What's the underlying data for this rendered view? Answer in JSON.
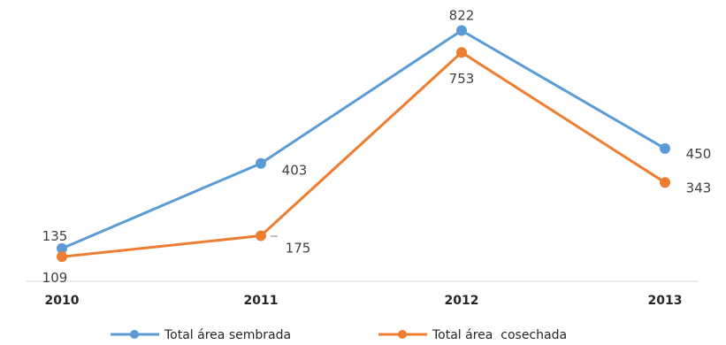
{
  "chart_data": {
    "type": "line",
    "categories": [
      "2010",
      "2011",
      "2012",
      "2013"
    ],
    "series": [
      {
        "name": "Total área sembrada",
        "values": [
          135,
          403,
          822,
          450
        ],
        "color": "#5B9BD5"
      },
      {
        "name": "Total área  cosechada",
        "values": [
          109,
          175,
          753,
          343
        ],
        "color": "#ED7D31"
      }
    ],
    "title": "",
    "xlabel": "",
    "ylabel": "",
    "ylim": [
      90,
      840
    ],
    "grid": false,
    "legend": "bottom"
  }
}
